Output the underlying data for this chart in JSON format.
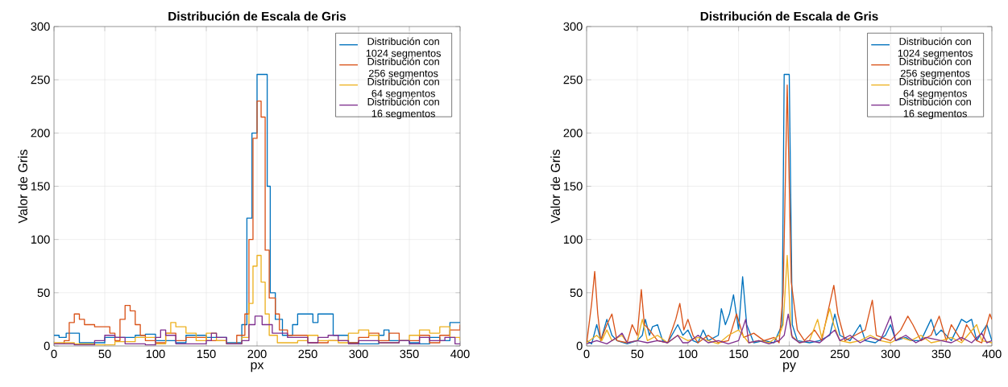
{
  "chart_data": [
    {
      "type": "step",
      "title": "Distribución de Escala de Gris",
      "xlabel": "px",
      "ylabel": "Valor de Gris",
      "xlim": [
        0,
        400
      ],
      "ylim": [
        0,
        300
      ],
      "xticks": [
        0,
        50,
        100,
        150,
        200,
        250,
        300,
        350,
        400
      ],
      "yticks": [
        0,
        50,
        100,
        150,
        200,
        250,
        300
      ],
      "grid": true,
      "legend": "top right",
      "series": [
        {
          "name": "Distribución con 1024 segmentos",
          "color": "#0072bd",
          "x": [
            0,
            5,
            12,
            25,
            40,
            50,
            65,
            80,
            90,
            100,
            120,
            130,
            150,
            170,
            185,
            190,
            195,
            200,
            207,
            210,
            213,
            218,
            225,
            235,
            240,
            250,
            255,
            260,
            270,
            275,
            290,
            300,
            320,
            325,
            330,
            350,
            360,
            370,
            380,
            390,
            400
          ],
          "values": [
            10,
            8,
            12,
            3,
            3,
            8,
            8,
            10,
            11,
            5,
            3,
            10,
            8,
            3,
            20,
            120,
            200,
            255,
            255,
            150,
            50,
            25,
            10,
            20,
            30,
            30,
            22,
            30,
            30,
            10,
            3,
            2,
            10,
            15,
            5,
            3,
            2,
            8,
            5,
            22,
            22
          ]
        },
        {
          "name": "Distribución con 256 segmentos",
          "color": "#d95319",
          "x": [
            0,
            10,
            15,
            20,
            25,
            30,
            40,
            50,
            55,
            60,
            65,
            70,
            75,
            80,
            85,
            90,
            100,
            110,
            120,
            130,
            140,
            150,
            160,
            170,
            180,
            188,
            192,
            196,
            200,
            204,
            208,
            212,
            218,
            222,
            230,
            250,
            270,
            290,
            300,
            310,
            320,
            330,
            340,
            350,
            360,
            370,
            380,
            390,
            400
          ],
          "values": [
            2,
            5,
            22,
            30,
            25,
            20,
            18,
            18,
            12,
            5,
            25,
            38,
            33,
            20,
            10,
            5,
            3,
            12,
            5,
            8,
            8,
            5,
            5,
            2,
            10,
            30,
            100,
            195,
            230,
            215,
            90,
            45,
            30,
            15,
            10,
            3,
            5,
            3,
            8,
            12,
            5,
            12,
            5,
            5,
            10,
            3,
            10,
            15,
            20
          ]
        },
        {
          "name": "Distribución con 64 segmentos",
          "color": "#edb120",
          "x": [
            0,
            20,
            40,
            60,
            80,
            100,
            110,
            115,
            120,
            130,
            140,
            150,
            160,
            170,
            185,
            192,
            196,
            200,
            204,
            208,
            212,
            220,
            240,
            250,
            260,
            280,
            290,
            300,
            310,
            320,
            340,
            350,
            360,
            370,
            380,
            390,
            400
          ],
          "values": [
            3,
            2,
            1,
            4,
            8,
            2,
            12,
            22,
            18,
            12,
            5,
            12,
            5,
            2,
            8,
            40,
            75,
            85,
            60,
            30,
            10,
            3,
            5,
            10,
            5,
            3,
            12,
            15,
            10,
            3,
            5,
            10,
            15,
            12,
            18,
            8,
            5
          ]
        },
        {
          "name": "Distribución con 16 segmentos",
          "color": "#7e2f8e",
          "x": [
            0,
            20,
            40,
            50,
            60,
            70,
            90,
            100,
            105,
            110,
            120,
            140,
            150,
            155,
            160,
            170,
            185,
            192,
            198,
            205,
            215,
            230,
            250,
            260,
            270,
            280,
            290,
            300,
            320,
            340,
            350,
            360,
            370,
            385,
            395,
            400
          ],
          "values": [
            2,
            1,
            5,
            10,
            8,
            2,
            1,
            8,
            15,
            10,
            2,
            2,
            5,
            12,
            8,
            2,
            5,
            20,
            28,
            20,
            12,
            8,
            3,
            8,
            10,
            5,
            2,
            5,
            3,
            5,
            2,
            8,
            5,
            8,
            2,
            2
          ]
        }
      ]
    },
    {
      "type": "line",
      "title": "Distribución de Escala de Gris",
      "xlabel": "py",
      "ylabel": "Valor de Gris",
      "xlim": [
        0,
        400
      ],
      "ylim": [
        0,
        300
      ],
      "xticks": [
        0,
        50,
        100,
        150,
        200,
        250,
        300,
        350,
        400
      ],
      "yticks": [
        0,
        50,
        100,
        150,
        200,
        250,
        300
      ],
      "grid": true,
      "legend": "top right",
      "series": [
        {
          "name": "Distribución con 1024 segmentos",
          "color": "#0072bd",
          "x": [
            0,
            5,
            10,
            14,
            20,
            25,
            30,
            40,
            50,
            55,
            58,
            62,
            65,
            70,
            75,
            80,
            90,
            95,
            100,
            105,
            110,
            115,
            120,
            130,
            133,
            137,
            141,
            145,
            150,
            154,
            158,
            165,
            175,
            185,
            193,
            195,
            200,
            203,
            208,
            220,
            230,
            240,
            245,
            250,
            260,
            270,
            275,
            285,
            295,
            300,
            305,
            315,
            320,
            330,
            340,
            345,
            350,
            360,
            370,
            375,
            380,
            385,
            395,
            400
          ],
          "values": [
            5,
            2,
            20,
            5,
            25,
            10,
            5,
            2,
            5,
            10,
            25,
            10,
            18,
            20,
            5,
            3,
            20,
            10,
            15,
            5,
            3,
            15,
            5,
            10,
            35,
            20,
            30,
            48,
            15,
            65,
            20,
            3,
            5,
            3,
            20,
            255,
            255,
            20,
            5,
            3,
            5,
            10,
            30,
            10,
            5,
            20,
            5,
            3,
            10,
            20,
            5,
            8,
            5,
            5,
            25,
            10,
            15,
            5,
            25,
            22,
            25,
            5,
            20,
            5
          ]
        },
        {
          "name": "Distribución con 256 segmentos",
          "color": "#d95319",
          "x": [
            0,
            5,
            8,
            11,
            14,
            20,
            25,
            30,
            40,
            45,
            50,
            54,
            57,
            62,
            70,
            80,
            88,
            92,
            96,
            100,
            105,
            110,
            120,
            130,
            140,
            148,
            155,
            165,
            175,
            185,
            190,
            194,
            198,
            202,
            208,
            215,
            225,
            232,
            240,
            244,
            248,
            255,
            265,
            275,
            282,
            286,
            300,
            310,
            317,
            322,
            330,
            340,
            348,
            355,
            360,
            370,
            375,
            385,
            390,
            398,
            400
          ],
          "values": [
            2,
            40,
            70,
            30,
            5,
            20,
            30,
            5,
            3,
            20,
            10,
            53,
            20,
            15,
            5,
            3,
            25,
            40,
            15,
            25,
            10,
            3,
            10,
            3,
            5,
            30,
            8,
            12,
            5,
            8,
            3,
            50,
            245,
            60,
            15,
            5,
            15,
            5,
            40,
            57,
            30,
            5,
            10,
            15,
            43,
            10,
            5,
            15,
            28,
            20,
            5,
            10,
            28,
            5,
            20,
            5,
            20,
            5,
            3,
            30,
            25
          ]
        },
        {
          "name": "Distribución con 64 segmentos",
          "color": "#edb120",
          "x": [
            0,
            10,
            15,
            20,
            25,
            35,
            40,
            50,
            55,
            60,
            70,
            80,
            90,
            100,
            110,
            120,
            130,
            140,
            150,
            160,
            170,
            180,
            190,
            194,
            198,
            202,
            210,
            220,
            228,
            232,
            240,
            244,
            250,
            260,
            270,
            280,
            290,
            300,
            310,
            320,
            330,
            340,
            350,
            360,
            370,
            385,
            390,
            400
          ],
          "values": [
            3,
            10,
            5,
            15,
            5,
            10,
            3,
            5,
            25,
            5,
            10,
            3,
            10,
            5,
            8,
            5,
            2,
            10,
            15,
            3,
            5,
            3,
            10,
            20,
            85,
            10,
            3,
            5,
            25,
            8,
            35,
            20,
            5,
            3,
            5,
            10,
            5,
            3,
            8,
            5,
            10,
            3,
            5,
            8,
            3,
            20,
            5,
            3
          ]
        },
        {
          "name": "Distribución con 16 segmentos",
          "color": "#7e2f8e",
          "x": [
            0,
            10,
            20,
            30,
            35,
            40,
            50,
            60,
            70,
            80,
            90,
            95,
            100,
            110,
            120,
            130,
            140,
            150,
            157,
            160,
            170,
            180,
            190,
            195,
            199,
            203,
            210,
            220,
            230,
            245,
            250,
            260,
            270,
            280,
            290,
            300,
            305,
            315,
            325,
            335,
            350,
            360,
            370,
            380,
            390,
            395,
            400
          ],
          "values": [
            2,
            5,
            2,
            8,
            12,
            3,
            5,
            3,
            5,
            3,
            10,
            3,
            3,
            10,
            3,
            5,
            2,
            5,
            25,
            3,
            5,
            2,
            5,
            10,
            30,
            8,
            3,
            5,
            3,
            15,
            5,
            10,
            3,
            8,
            5,
            28,
            5,
            10,
            3,
            8,
            5,
            3,
            8,
            3,
            12,
            3,
            5
          ]
        }
      ]
    }
  ]
}
